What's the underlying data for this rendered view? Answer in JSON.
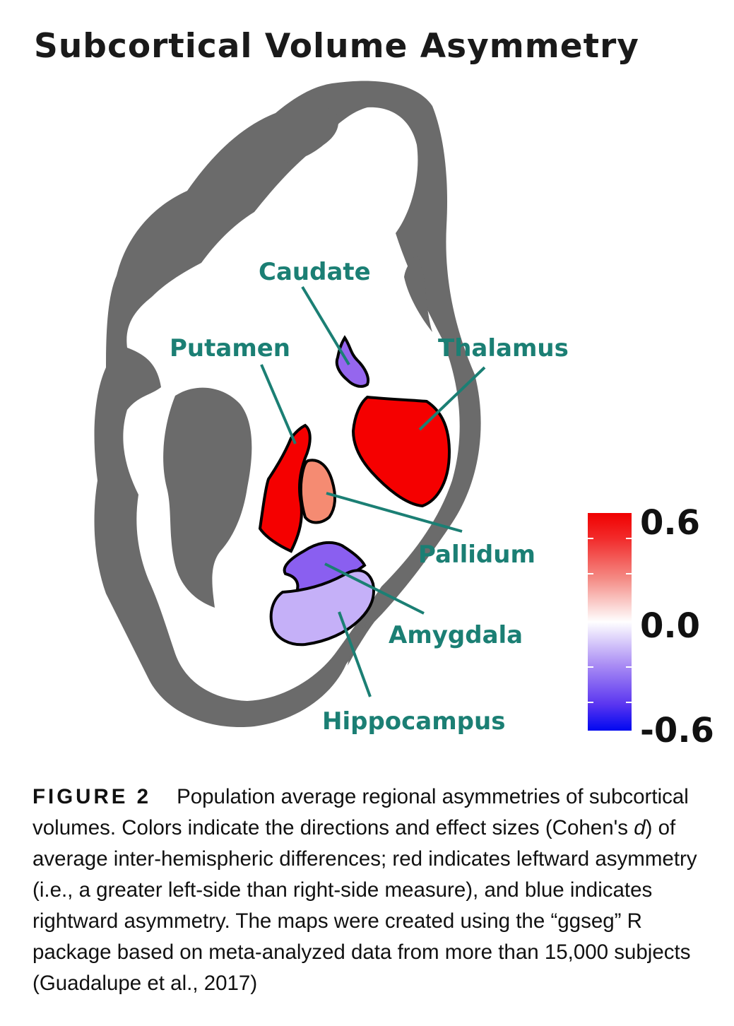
{
  "figure": {
    "title": "Subcortical Volume Asymmetry",
    "regions": [
      {
        "name": "Caudate",
        "cohens_d": -0.35,
        "fill": "#9566ee"
      },
      {
        "name": "Putamen",
        "cohens_d": 0.6,
        "fill": "#f50000"
      },
      {
        "name": "Thalamus",
        "cohens_d": 0.6,
        "fill": "#f50000"
      },
      {
        "name": "Pallidum",
        "cohens_d": 0.35,
        "fill": "#f58b72"
      },
      {
        "name": "Amygdala",
        "cohens_d": -0.4,
        "fill": "#8a5ff0"
      },
      {
        "name": "Hippocampus",
        "cohens_d": -0.2,
        "fill": "#c5b0f8"
      }
    ],
    "colorbar": {
      "max_label": "0.6",
      "mid_label": "0.0",
      "min_label": "-0.6",
      "colors": [
        "#f00000",
        "#ffffff",
        "#0000f0"
      ]
    }
  },
  "caption": {
    "label": "FIGURE 2",
    "text_before_italic": "Population average regional asymmetries of subcortical volumes. Colors indicate the directions and effect sizes (Cohen's ",
    "italic": "d",
    "text_after_italic": ") of average inter-hemispheric differences; red indicates leftward asymmetry (i.e., a greater left-side than right-side measure), and blue indicates rightward asymmetry. The maps were created using the “ggseg” R package based on meta-analyzed data from more than 15,000 subjects (Guadalupe et al., 2017)"
  }
}
